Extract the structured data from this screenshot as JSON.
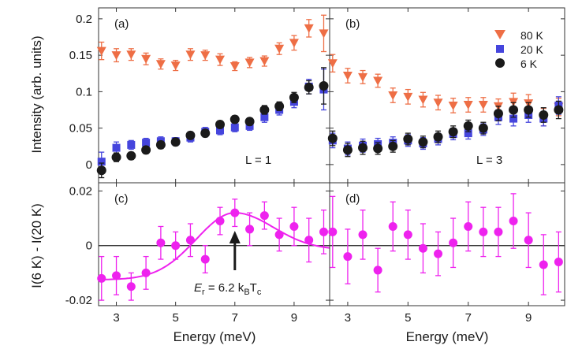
{
  "colors": {
    "orange": "#ee6e45",
    "blue": "#4545dd",
    "black": "#1a1a1a",
    "magenta": "#ee22ee"
  },
  "chart_data": {
    "type": "scatter",
    "xlabel": "Energy (meV)",
    "ylabel_top": "Intensity (arb. units)",
    "ylabel_bottom": "I(6 K) - I(20 K)",
    "xlim": [
      2.4,
      10.2
    ],
    "ylim_top": [
      -0.025,
      0.215
    ],
    "ylim_bottom": [
      -0.022,
      0.023
    ],
    "x_ticks": [
      "3",
      "5",
      "7",
      "9"
    ],
    "y_ticks_top": [
      "0",
      "0.05",
      "0.1",
      "0.15",
      "0.2"
    ],
    "y_ticks_bottom": [
      "-0.02",
      "0",
      "0.02"
    ],
    "legend": [
      "80 K",
      "20 K",
      "6 K"
    ],
    "legend_position": "top-right of panel (b)",
    "panels": [
      {
        "label": "(a)",
        "text": "L = 1",
        "series": [
          {
            "name": "80 K",
            "marker": "triangle-down",
            "x": [
              2.5,
              3,
              3.5,
              4,
              4.5,
              5,
              5.5,
              6,
              6.5,
              7,
              7.5,
              8,
              8.5,
              9,
              9.5,
              10
            ],
            "y": [
              0.156,
              0.15,
              0.151,
              0.145,
              0.138,
              0.136,
              0.151,
              0.15,
              0.144,
              0.135,
              0.14,
              0.142,
              0.159,
              0.167,
              0.187,
              0.18
            ],
            "err": [
              0.012,
              0.009,
              0.008,
              0.008,
              0.007,
              0.007,
              0.008,
              0.007,
              0.008,
              0.006,
              0.007,
              0.007,
              0.008,
              0.01,
              0.012,
              0.025
            ]
          },
          {
            "name": "20 K",
            "marker": "square",
            "x": [
              2.5,
              3,
              3.5,
              4,
              4.5,
              5,
              5.5,
              6,
              6.5,
              7,
              7.5,
              8,
              8.5,
              9,
              9.5,
              10
            ],
            "y": [
              0.004,
              0.023,
              0.027,
              0.03,
              0.032,
              0.032,
              0.037,
              0.045,
              0.047,
              0.051,
              0.053,
              0.065,
              0.075,
              0.086,
              0.107,
              0.103
            ],
            "err": [
              0.013,
              0.008,
              0.006,
              0.006,
              0.006,
              0.005,
              0.006,
              0.006,
              0.006,
              0.006,
              0.006,
              0.007,
              0.007,
              0.008,
              0.01,
              0.028
            ]
          },
          {
            "name": "6 K",
            "marker": "circle",
            "x": [
              2.5,
              3,
              3.5,
              4,
              4.5,
              5,
              5.5,
              6,
              6.5,
              7,
              7.5,
              8,
              8.5,
              9,
              9.5,
              10
            ],
            "y": [
              -0.008,
              0.01,
              0.012,
              0.02,
              0.027,
              0.031,
              0.04,
              0.043,
              0.055,
              0.062,
              0.059,
              0.075,
              0.08,
              0.092,
              0.106,
              0.108
            ],
            "err": [
              0.01,
              0.006,
              0.005,
              0.005,
              0.005,
              0.005,
              0.005,
              0.005,
              0.005,
              0.005,
              0.005,
              0.006,
              0.006,
              0.007,
              0.009,
              0.025
            ]
          }
        ]
      },
      {
        "label": "(b)",
        "text": "L = 3",
        "series": [
          {
            "name": "80 K",
            "marker": "triangle-down",
            "x": [
              2.5,
              3,
              3.5,
              4,
              4.5,
              5,
              5.5,
              6,
              6.5,
              7,
              7.5,
              8,
              8.5,
              9,
              9.5,
              10
            ],
            "y": [
              0.139,
              0.122,
              0.12,
              0.115,
              0.095,
              0.093,
              0.089,
              0.085,
              0.081,
              0.082,
              0.082,
              0.08,
              0.086,
              0.084,
              0.065,
              0.079
            ],
            "err": [
              0.012,
              0.01,
              0.009,
              0.009,
              0.01,
              0.01,
              0.01,
              0.01,
              0.01,
              0.01,
              0.01,
              0.01,
              0.012,
              0.012,
              0.012,
              0.012
            ]
          },
          {
            "name": "20 K",
            "marker": "square",
            "x": [
              2.5,
              3,
              3.5,
              4,
              4.5,
              5,
              5.5,
              6,
              6.5,
              7,
              7.5,
              8,
              8.5,
              9,
              9.5,
              10
            ],
            "y": [
              0.033,
              0.022,
              0.026,
              0.028,
              0.03,
              0.033,
              0.029,
              0.035,
              0.042,
              0.043,
              0.048,
              0.065,
              0.063,
              0.068,
              0.063,
              0.081
            ],
            "err": [
              0.01,
              0.009,
              0.009,
              0.008,
              0.008,
              0.008,
              0.008,
              0.008,
              0.008,
              0.008,
              0.008,
              0.01,
              0.01,
              0.01,
              0.01,
              0.012
            ]
          },
          {
            "name": "6 K",
            "marker": "circle",
            "x": [
              2.5,
              3,
              3.5,
              4,
              4.5,
              5,
              5.5,
              6,
              6.5,
              7,
              7.5,
              8,
              8.5,
              9,
              9.5,
              10
            ],
            "y": [
              0.036,
              0.02,
              0.023,
              0.022,
              0.025,
              0.035,
              0.031,
              0.038,
              0.045,
              0.053,
              0.05,
              0.07,
              0.075,
              0.075,
              0.068,
              0.075
            ],
            "err": [
              0.01,
              0.009,
              0.009,
              0.008,
              0.008,
              0.008,
              0.008,
              0.008,
              0.008,
              0.008,
              0.008,
              0.01,
              0.01,
              0.01,
              0.01,
              0.012
            ]
          }
        ]
      },
      {
        "label": "(c)",
        "series": [
          {
            "name": "",
            "marker": "circle",
            "x": [
              2.5,
              3,
              3.5,
              4,
              4.5,
              5,
              5.5,
              6,
              6.5,
              7,
              7.5,
              8,
              8.5,
              9,
              9.5,
              10
            ],
            "y": [
              -0.012,
              -0.011,
              -0.015,
              -0.01,
              0.001,
              0.0,
              0.002,
              -0.005,
              0.009,
              0.012,
              0.006,
              0.011,
              0.004,
              0.007,
              0.002,
              0.005
            ],
            "err": [
              0.008,
              0.007,
              0.005,
              0.006,
              0.006,
              0.005,
              0.006,
              0.005,
              0.005,
              0.005,
              0.006,
              0.005,
              0.006,
              0.007,
              0.008,
              0.008
            ]
          }
        ],
        "fit_curve": {
          "center": 7.0,
          "amplitude": 0.0245,
          "width": 1.3,
          "offset": -0.0125,
          "tail_level": -0.0015
        },
        "annotation": {
          "x": 7.0,
          "base": "E",
          "base_sub": "r",
          "mid": " = 6.2 k",
          "mid_sub": "B",
          "tail": "T",
          "tail_sub": "c"
        }
      },
      {
        "label": "(d)",
        "series": [
          {
            "name": "",
            "marker": "circle",
            "x": [
              2.5,
              3,
              3.5,
              4,
              4.5,
              5,
              5.5,
              6,
              6.5,
              7,
              7.5,
              8,
              8.5,
              9,
              9.5,
              10
            ],
            "y": [
              0.005,
              -0.004,
              0.004,
              -0.009,
              0.007,
              0.004,
              -0.001,
              -0.003,
              0.001,
              0.007,
              0.005,
              0.005,
              0.009,
              0.002,
              -0.007,
              -0.006
            ],
            "err": [
              0.013,
              0.01,
              0.009,
              0.008,
              0.009,
              0.009,
              0.009,
              0.008,
              0.009,
              0.009,
              0.009,
              0.009,
              0.01,
              0.01,
              0.011,
              0.011
            ]
          }
        ]
      }
    ]
  }
}
